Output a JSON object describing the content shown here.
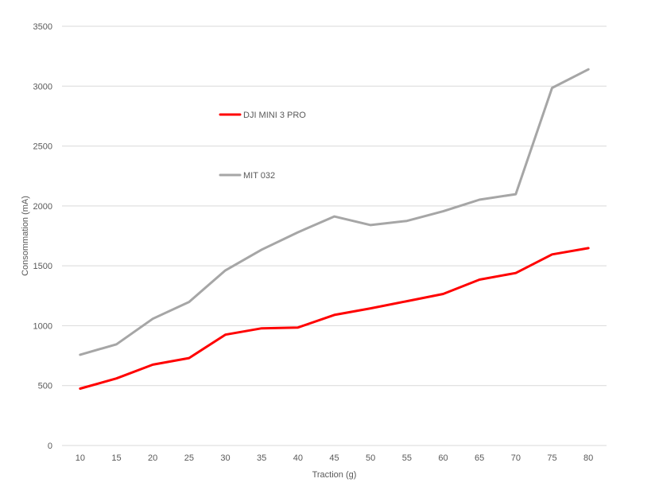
{
  "chart_data": {
    "type": "line",
    "title": "",
    "xlabel": "Traction (g)",
    "ylabel": "Consommation (mA)",
    "categories": [
      "10",
      "15",
      "20",
      "25",
      "30",
      "35",
      "40",
      "45",
      "50",
      "55",
      "60",
      "65",
      "70",
      "75",
      "80"
    ],
    "ylim": [
      0,
      3500
    ],
    "yticks": [
      "0",
      "500",
      "1000",
      "1500",
      "2000",
      "2500",
      "3000",
      "3500"
    ],
    "grid": true,
    "legend_position": "inside-upper-left",
    "series": [
      {
        "name": "DJI MINI 3 PRO",
        "color": "#ff0000",
        "values": [
          475,
          560,
          675,
          730,
          925,
          978,
          985,
          1090,
          1145,
          1205,
          1265,
          1385,
          1440,
          1595,
          1648
        ]
      },
      {
        "name": "MIT 032",
        "color": "#a6a6a6",
        "values": [
          758,
          845,
          1058,
          1198,
          1462,
          1635,
          1780,
          1912,
          1840,
          1875,
          1955,
          2052,
          2098,
          2985,
          3140
        ]
      }
    ]
  }
}
